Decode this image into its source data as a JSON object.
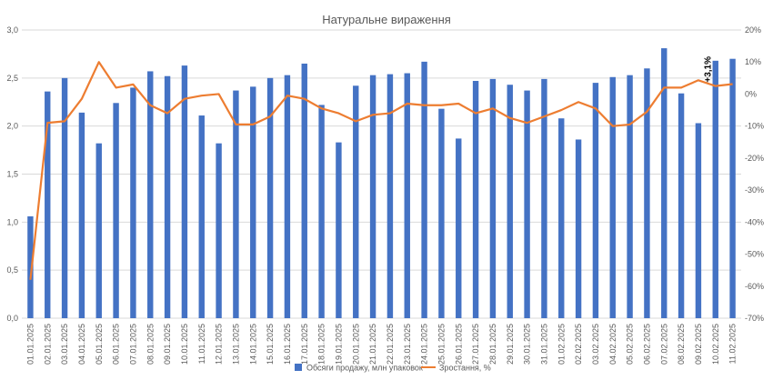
{
  "chart_data": {
    "type": "bar",
    "title": "Натуральне вираження",
    "categories": [
      "01.01.2025",
      "02.01.2025",
      "03.01.2025",
      "04.01.2025",
      "05.01.2025",
      "06.01.2025",
      "07.01.2025",
      "08.01.2025",
      "09.01.2025",
      "10.01.2025",
      "11.01.2025",
      "12.01.2025",
      "13.01.2025",
      "14.01.2025",
      "15.01.2025",
      "16.01.2025",
      "17.01.2025",
      "18.01.2025",
      "19.01.2025",
      "20.01.2025",
      "21.01.2025",
      "22.01.2025",
      "23.01.2025",
      "24.01.2025",
      "25.01.2025",
      "26.01.2025",
      "27.01.2025",
      "28.01.2025",
      "29.01.2025",
      "30.01.2025",
      "31.01.2025",
      "01.02.2025",
      "02.02.2025",
      "03.02.2025",
      "04.02.2025",
      "05.02.2025",
      "06.02.2025",
      "07.02.2025",
      "08.02.2025",
      "09.02.2025",
      "10.02.2025",
      "11.02.2025"
    ],
    "series": [
      {
        "name": "Обсяги продажу, млн упаковок",
        "type": "bar",
        "axis": "left",
        "color": "#4472C4",
        "values": [
          1.06,
          2.36,
          2.5,
          2.14,
          1.82,
          2.24,
          2.4,
          2.57,
          2.52,
          2.63,
          2.11,
          1.82,
          2.37,
          2.41,
          2.5,
          2.53,
          2.65,
          2.22,
          1.83,
          2.42,
          2.53,
          2.54,
          2.55,
          2.67,
          2.18,
          1.87,
          2.47,
          2.49,
          2.43,
          2.37,
          2.49,
          2.08,
          1.86,
          2.45,
          2.51,
          2.53,
          2.6,
          2.81,
          2.34,
          2.03,
          2.68,
          2.7
        ]
      },
      {
        "name": "Зростання, %",
        "type": "line",
        "axis": "right",
        "color": "#ED7D31",
        "values": [
          -58,
          -9,
          -8.5,
          -1.5,
          10,
          2,
          3,
          -3.5,
          -6,
          -1.5,
          -0.5,
          0,
          -9.5,
          -9.5,
          -7,
          -0.5,
          -1.5,
          -4.5,
          -6,
          -8.5,
          -6.5,
          -6,
          -3,
          -3.5,
          -3.5,
          -3,
          -6,
          -4.5,
          -7.5,
          -9,
          -7,
          -5,
          -2.5,
          -4.5,
          -10,
          -9.5,
          -5.5,
          2,
          2,
          4.3,
          2.5,
          3.1
        ]
      }
    ],
    "y_left": {
      "min": 0,
      "max": 3.0,
      "step": 0.5,
      "tick_labels": [
        "0,0",
        "0,5",
        "1,0",
        "1,5",
        "2,0",
        "2,5",
        "3,0"
      ]
    },
    "y_right": {
      "min": -70,
      "max": 20,
      "step": 10,
      "tick_labels": [
        "-70%",
        "-60%",
        "-50%",
        "-40%",
        "-30%",
        "-20%",
        "-10%",
        "0%",
        "10%",
        "20%"
      ]
    },
    "annotation": {
      "text": "+3,1%",
      "index": 40
    },
    "grid": true,
    "legend_position": "bottom"
  }
}
